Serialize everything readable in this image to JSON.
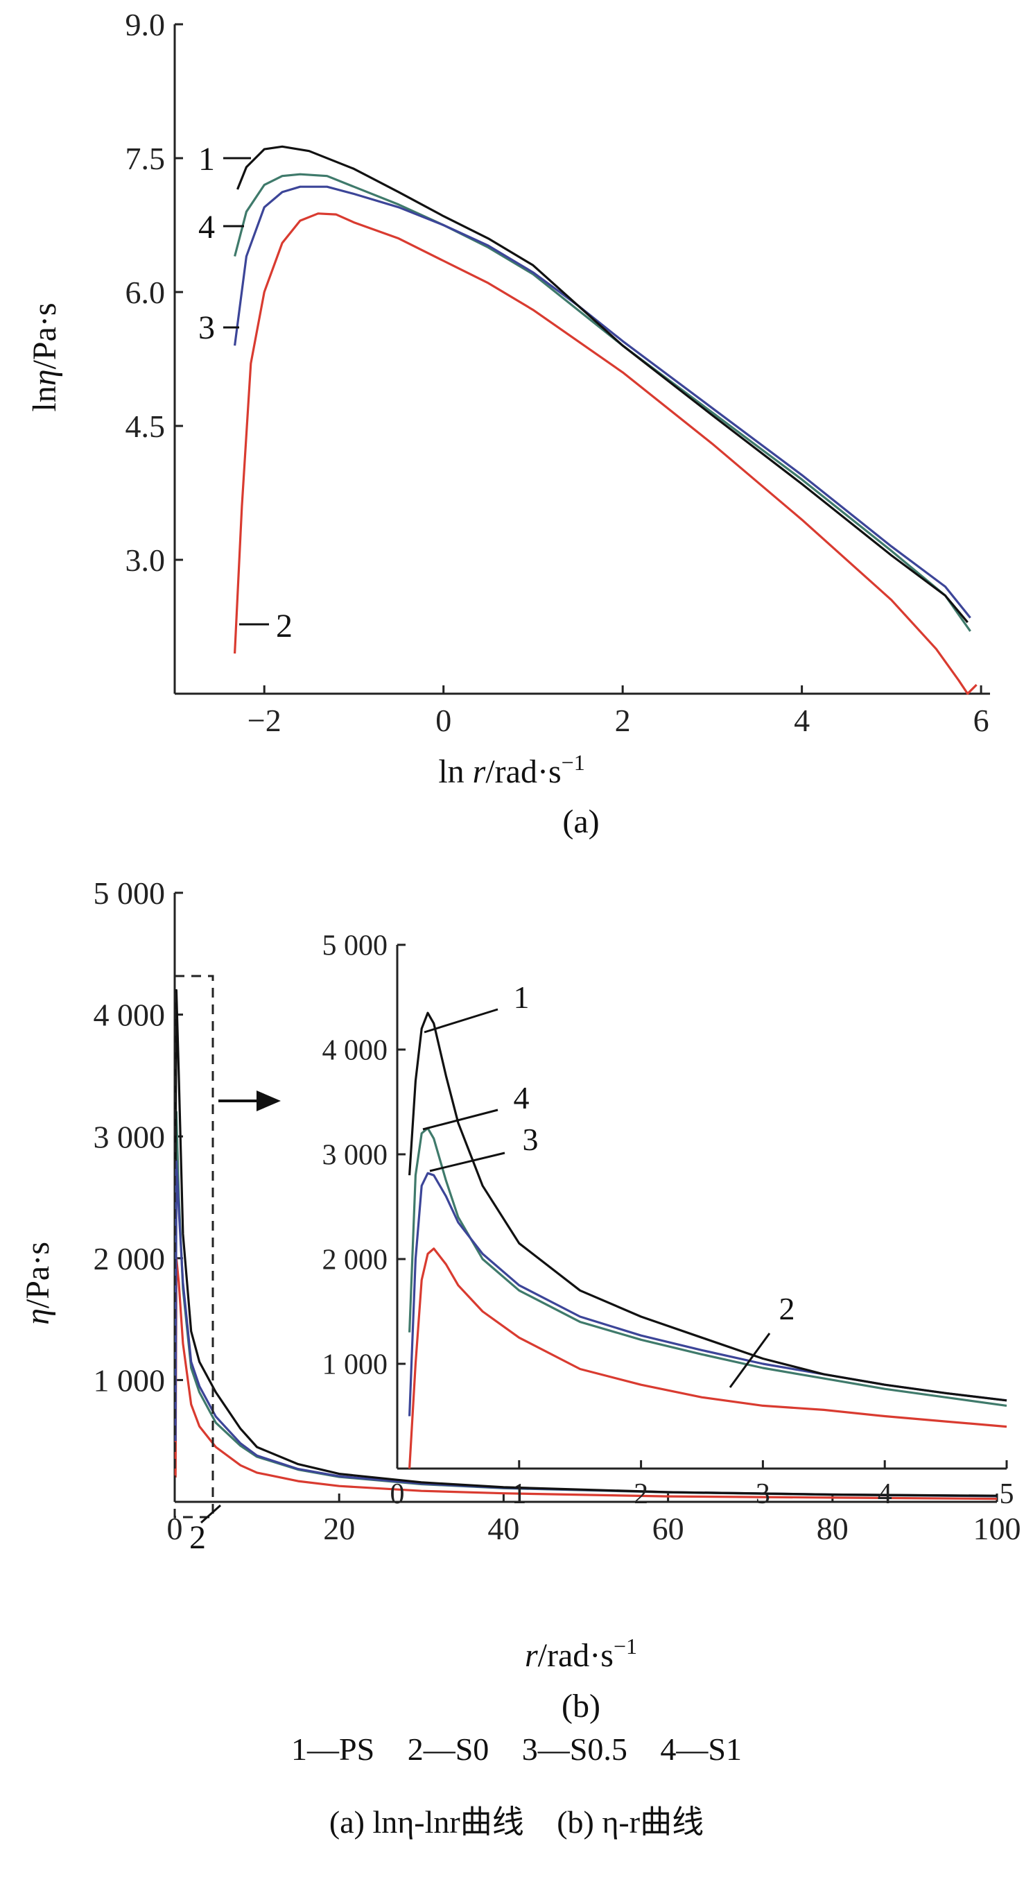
{
  "chart_data": [
    {
      "type": "line",
      "panel_label": "(a)",
      "xlabel": "ln r/rad·s⁻¹",
      "ylabel": "lnη/Pa·s",
      "xlim": [
        -3,
        6.1
      ],
      "ylim": [
        1.5,
        9.0
      ],
      "xticks": [
        "−2",
        "0",
        "2",
        "4",
        "6"
      ],
      "yticks": [
        "3.0",
        "4.5",
        "6.0",
        "7.5",
        "9.0"
      ],
      "series": [
        {
          "name": "1",
          "color": "#111111",
          "x": [
            -2.3,
            -2.2,
            -2.0,
            -1.8,
            -1.5,
            -1.0,
            -0.5,
            0,
            0.5,
            1.0,
            1.5,
            2.0,
            3.0,
            4.0,
            5.0,
            5.6,
            5.85
          ],
          "y": [
            7.15,
            7.4,
            7.6,
            7.63,
            7.58,
            7.38,
            7.12,
            6.85,
            6.6,
            6.3,
            5.85,
            5.4,
            4.62,
            3.85,
            3.05,
            2.6,
            2.3
          ]
        },
        {
          "name": "2",
          "color": "#d93b30",
          "x": [
            -2.33,
            -2.25,
            -2.15,
            -2.0,
            -1.8,
            -1.6,
            -1.4,
            -1.2,
            -1.0,
            -0.5,
            0,
            0.5,
            1.0,
            2.0,
            3.0,
            4.0,
            5.0,
            5.5,
            5.75,
            5.85,
            5.95
          ],
          "y": [
            1.95,
            3.6,
            5.2,
            6.0,
            6.55,
            6.8,
            6.88,
            6.87,
            6.78,
            6.6,
            6.35,
            6.1,
            5.8,
            5.1,
            4.3,
            3.45,
            2.55,
            2.0,
            1.65,
            1.5,
            1.6
          ]
        },
        {
          "name": "3",
          "color": "#3c4598",
          "x": [
            -2.33,
            -2.2,
            -2.0,
            -1.8,
            -1.6,
            -1.3,
            -1.0,
            -0.5,
            0,
            0.5,
            1.0,
            1.5,
            2.0,
            3.0,
            4.0,
            5.0,
            5.6,
            5.88
          ],
          "y": [
            5.4,
            6.4,
            6.95,
            7.12,
            7.18,
            7.18,
            7.1,
            6.95,
            6.75,
            6.52,
            6.22,
            5.85,
            5.45,
            4.7,
            3.95,
            3.15,
            2.7,
            2.35
          ]
        },
        {
          "name": "4",
          "color": "#3f7a6b",
          "x": [
            -2.33,
            -2.2,
            -2.0,
            -1.8,
            -1.6,
            -1.3,
            -1.0,
            -0.5,
            0,
            0.5,
            1.0,
            1.5,
            2.0,
            3.0,
            4.0,
            5.0,
            5.6,
            5.88
          ],
          "y": [
            6.4,
            6.9,
            7.2,
            7.3,
            7.32,
            7.3,
            7.18,
            6.98,
            6.75,
            6.5,
            6.2,
            5.8,
            5.4,
            4.65,
            3.9,
            3.1,
            2.6,
            2.2
          ]
        }
      ],
      "annotations": [
        "1",
        "4",
        "3",
        "2"
      ]
    },
    {
      "type": "line",
      "panel_label": "(b)",
      "xlabel": "r/rad·s⁻¹",
      "ylabel": "η/Pa·s",
      "xlim": [
        0,
        100
      ],
      "ylim": [
        0,
        5000
      ],
      "xticks": [
        "0",
        "20",
        "40",
        "60",
        "80",
        "100"
      ],
      "yticks": [
        "1 000",
        "2 000",
        "3 000",
        "4 000",
        "5 000"
      ],
      "series": [
        {
          "name": "1",
          "color": "#111111",
          "x": [
            0.1,
            0.2,
            0.5,
            1,
            2,
            3,
            5,
            8,
            10,
            15,
            20,
            30,
            40,
            60,
            80,
            100
          ],
          "y": [
            2800,
            4200,
            3500,
            2200,
            1400,
            1150,
            900,
            600,
            450,
            310,
            230,
            160,
            120,
            80,
            60,
            50
          ]
        },
        {
          "name": "2",
          "color": "#d93b30",
          "x": [
            0.1,
            0.2,
            0.5,
            1,
            2,
            3,
            5,
            8,
            10,
            15,
            20,
            30,
            40,
            60,
            80,
            100
          ],
          "y": [
            200,
            2000,
            1800,
            1300,
            800,
            620,
            450,
            300,
            240,
            170,
            130,
            90,
            70,
            45,
            35,
            25
          ]
        },
        {
          "name": "3",
          "color": "#3c4598",
          "x": [
            0.1,
            0.2,
            0.5,
            1,
            2,
            3,
            5,
            8,
            10,
            15,
            20,
            30,
            40,
            60,
            80,
            100
          ],
          "y": [
            500,
            2800,
            2400,
            1800,
            1150,
            950,
            700,
            480,
            380,
            270,
            210,
            150,
            115,
            80,
            60,
            48
          ]
        },
        {
          "name": "4",
          "color": "#3f7a6b",
          "x": [
            0.1,
            0.2,
            0.5,
            1,
            2,
            3,
            5,
            8,
            10,
            15,
            20,
            30,
            40,
            60,
            80,
            100
          ],
          "y": [
            1000,
            3200,
            2500,
            1750,
            1100,
            900,
            650,
            460,
            370,
            265,
            205,
            145,
            112,
            78,
            58,
            46
          ]
        }
      ],
      "annotations": [
        "2"
      ]
    },
    {
      "type": "line",
      "panel_label": "inset",
      "xlim": [
        0,
        5
      ],
      "ylim": [
        0,
        5000
      ],
      "xticks": [
        "0",
        "1",
        "2",
        "3",
        "4",
        "5"
      ],
      "yticks": [
        "1 000",
        "2 000",
        "3 000",
        "4 000",
        "5 000"
      ],
      "series": [
        {
          "name": "1",
          "color": "#111111",
          "x": [
            0.1,
            0.15,
            0.2,
            0.25,
            0.3,
            0.4,
            0.5,
            0.7,
            1.0,
            1.5,
            2.0,
            2.5,
            3.0,
            3.5,
            4.0,
            4.5,
            5.0
          ],
          "y": [
            2800,
            3700,
            4200,
            4350,
            4250,
            3750,
            3300,
            2700,
            2150,
            1700,
            1450,
            1250,
            1050,
            900,
            800,
            720,
            650
          ]
        },
        {
          "name": "2",
          "color": "#d93b30",
          "x": [
            0.1,
            0.15,
            0.2,
            0.25,
            0.3,
            0.4,
            0.5,
            0.7,
            1.0,
            1.5,
            2.0,
            2.5,
            3.0,
            3.5,
            4.0,
            4.5,
            5.0
          ],
          "y": [
            0,
            1000,
            1800,
            2050,
            2100,
            1950,
            1750,
            1500,
            1250,
            950,
            800,
            680,
            600,
            560,
            500,
            450,
            400
          ]
        },
        {
          "name": "3",
          "color": "#3c4598",
          "x": [
            0.1,
            0.15,
            0.2,
            0.25,
            0.3,
            0.4,
            0.5,
            0.7,
            1.0,
            1.5,
            2.0,
            2.5,
            3.0,
            3.5,
            4.0,
            4.5,
            5.0
          ],
          "y": [
            500,
            2000,
            2700,
            2820,
            2800,
            2600,
            2350,
            2050,
            1750,
            1450,
            1270,
            1130,
            1000,
            900,
            800,
            720,
            650
          ]
        },
        {
          "name": "4",
          "color": "#3f7a6b",
          "x": [
            0.1,
            0.15,
            0.2,
            0.25,
            0.3,
            0.4,
            0.5,
            0.7,
            1.0,
            1.5,
            2.0,
            2.5,
            3.0,
            3.5,
            4.0,
            4.5,
            5.0
          ],
          "y": [
            1300,
            2800,
            3200,
            3250,
            3150,
            2750,
            2400,
            2000,
            1700,
            1400,
            1230,
            1090,
            960,
            860,
            760,
            680,
            600
          ]
        }
      ],
      "annotations": [
        "1",
        "4",
        "3",
        "2"
      ]
    }
  ],
  "legend": {
    "items": [
      "1—PS",
      "2—S0",
      "3—S0.5",
      "4—S1"
    ]
  },
  "caption": {
    "a": "(a) lnη-lnr曲线",
    "b": "(b) η-r曲线"
  }
}
